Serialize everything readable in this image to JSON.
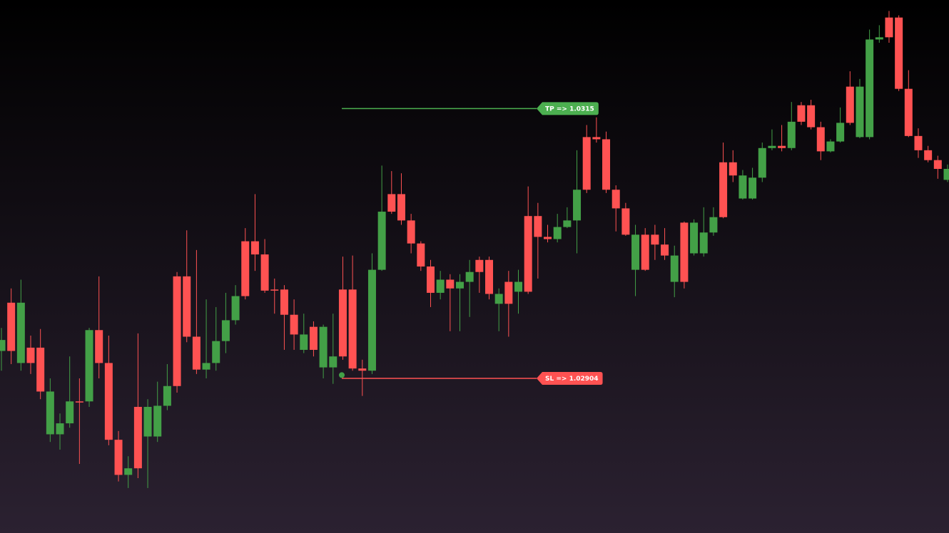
{
  "chart_data": {
    "type": "candlestick",
    "up_color": "#43a047",
    "down_color": "#ff5252",
    "ylim": [
      1.02763,
      1.03249
    ],
    "open": [
      1.02929,
      1.02973,
      1.02918,
      1.02932,
      1.02932,
      1.02853,
      1.02853,
      1.02863,
      1.02883,
      1.02883,
      1.02948,
      1.02918,
      1.02848,
      1.02816,
      1.02878,
      1.02851,
      1.02851,
      1.02879,
      1.02997,
      1.02997,
      1.02942,
      1.02912,
      1.02918,
      1.02938,
      1.02957,
      1.03029,
      1.03029,
      1.03017,
      1.02985,
      1.02985,
      1.02962,
      1.0293,
      1.02951,
      1.02914,
      1.02914,
      1.02985,
      1.02985,
      1.02913,
      1.02911,
      1.03003,
      1.03072,
      1.03072,
      1.03048,
      1.03027,
      1.03006,
      1.02982,
      1.02994,
      1.02986,
      1.02992,
      1.03012,
      1.03012,
      1.02972,
      1.02992,
      1.02983,
      1.03052,
      1.03052,
      1.03033,
      1.03031,
      1.03042,
      1.03048,
      1.03124,
      1.03124,
      1.03122,
      1.03076,
      1.03059,
      1.03003,
      1.03035,
      1.03035,
      1.03026,
      1.02992,
      1.03046,
      1.03018,
      1.03018,
      1.03037,
      1.03101,
      1.03101,
      1.03068,
      1.03068,
      1.03087,
      1.03114,
      1.03116,
      1.03114,
      1.03153,
      1.03153,
      1.03133,
      1.03111,
      1.0312,
      1.0317,
      1.03124,
      1.03124,
      1.03213,
      1.03233,
      1.03233,
      1.03168,
      1.03125,
      1.03112,
      1.03103,
      1.03085
    ],
    "high": [
      1.0295,
      1.02986,
      1.02994,
      1.02943,
      1.02949,
      1.02904,
      1.02872,
      1.02924,
      1.02904,
      1.0295,
      1.02997,
      1.02943,
      1.02856,
      1.02833,
      1.02945,
      1.02885,
      1.02901,
      1.02917,
      1.03001,
      1.03039,
      1.03021,
      1.02976,
      1.02969,
      1.02982,
      1.02989,
      1.03041,
      1.03072,
      1.03031,
      1.02995,
      1.02989,
      1.02976,
      1.02963,
      1.02956,
      1.02953,
      1.02963,
      1.03015,
      1.03016,
      1.02921,
      1.03018,
      1.03098,
      1.03093,
      1.03091,
      1.03054,
      1.03029,
      1.03012,
      1.03002,
      1.02999,
      1.02999,
      1.03012,
      1.03015,
      1.03015,
      1.02986,
      1.03002,
      1.03003,
      1.03079,
      1.03064,
      1.03044,
      1.03054,
      1.0306,
      1.03112,
      1.03135,
      1.03142,
      1.03129,
      1.0308,
      1.03064,
      1.03044,
      1.03041,
      1.03044,
      1.03041,
      1.03025,
      1.03047,
      1.03049,
      1.0306,
      1.0306,
      1.03119,
      1.03112,
      1.03094,
      1.03096,
      1.03119,
      1.03131,
      1.03135,
      1.03156,
      1.03156,
      1.03158,
      1.03138,
      1.03122,
      1.03151,
      1.03184,
      1.03177,
      1.03222,
      1.03226,
      1.03239,
      1.03235,
      1.03185,
      1.03132,
      1.03116,
      1.03107,
      1.03099
    ],
    "low": [
      1.02911,
      1.02917,
      1.02911,
      1.02908,
      1.02885,
      1.02846,
      1.02839,
      1.02859,
      1.02826,
      1.02878,
      1.02904,
      1.02843,
      1.0281,
      1.02804,
      1.02813,
      1.02804,
      1.02846,
      1.02875,
      1.02891,
      1.02937,
      1.02908,
      1.02904,
      1.02911,
      1.02927,
      1.02953,
      1.02976,
      1.03002,
      1.02982,
      1.02963,
      1.0293,
      1.0293,
      1.02927,
      1.02924,
      1.02904,
      1.02899,
      1.02921,
      1.02911,
      1.02888,
      1.02908,
      1.03002,
      1.03054,
      1.03044,
      1.03018,
      1.03002,
      1.02969,
      1.02976,
      1.02947,
      1.02947,
      1.0296,
      1.02982,
      1.02976,
      1.02947,
      1.02942,
      1.02963,
      1.02981,
      1.02995,
      1.03028,
      1.03028,
      1.03041,
      1.03018,
      1.03073,
      1.03119,
      1.03073,
      1.03038,
      1.03034,
      1.02979,
      1.03002,
      1.03012,
      1.03012,
      1.02978,
      1.02986,
      1.03016,
      1.03015,
      1.03034,
      1.0305,
      1.03083,
      1.03067,
      1.03067,
      1.03083,
      1.03112,
      1.03111,
      1.03112,
      1.03135,
      1.03131,
      1.03103,
      1.0311,
      1.03119,
      1.03135,
      1.03123,
      1.03122,
      1.0321,
      1.0321,
      1.03166,
      1.03124,
      1.03105,
      1.03101,
      1.03086,
      1.03083
    ],
    "close": [
      1.02939,
      1.02929,
      1.02973,
      1.02918,
      1.02892,
      1.02892,
      1.02863,
      1.02883,
      1.02882,
      1.02948,
      1.02918,
      1.02848,
      1.02816,
      1.02822,
      1.02822,
      1.02878,
      1.02879,
      1.02897,
      1.02897,
      1.02942,
      1.02912,
      1.02918,
      1.02938,
      1.02957,
      1.02979,
      1.02979,
      1.03017,
      1.02984,
      1.02984,
      1.02962,
      1.02944,
      1.02944,
      1.0293,
      1.02951,
      1.02924,
      1.02924,
      1.02913,
      1.02911,
      1.03003,
      1.03056,
      1.03056,
      1.03048,
      1.03027,
      1.03006,
      1.02982,
      1.02994,
      1.02986,
      1.02992,
      1.03001,
      1.03001,
      1.02981,
      1.02981,
      1.02972,
      1.02992,
      1.02983,
      1.03033,
      1.03031,
      1.03042,
      1.03048,
      1.03076,
      1.03076,
      1.03122,
      1.03076,
      1.03059,
      1.03035,
      1.03035,
      1.03003,
      1.03026,
      1.03016,
      1.03016,
      1.02992,
      1.03046,
      1.03037,
      1.03051,
      1.03051,
      1.03089,
      1.03089,
      1.03087,
      1.03114,
      1.03116,
      1.03114,
      1.03138,
      1.03138,
      1.03133,
      1.03111,
      1.0312,
      1.03137,
      1.03137,
      1.0317,
      1.03213,
      1.03215,
      1.03215,
      1.03168,
      1.03125,
      1.03112,
      1.03103,
      1.03095,
      1.03095
    ],
    "entry": {
      "value": 1.02907,
      "color": "#43a047"
    },
    "levels": [
      {
        "label": "TP => 1.0315",
        "value": 1.0315,
        "color": "#4caf50"
      },
      {
        "label": "SL => 1.02904",
        "value": 1.02904,
        "color": "#ff5252"
      }
    ]
  }
}
